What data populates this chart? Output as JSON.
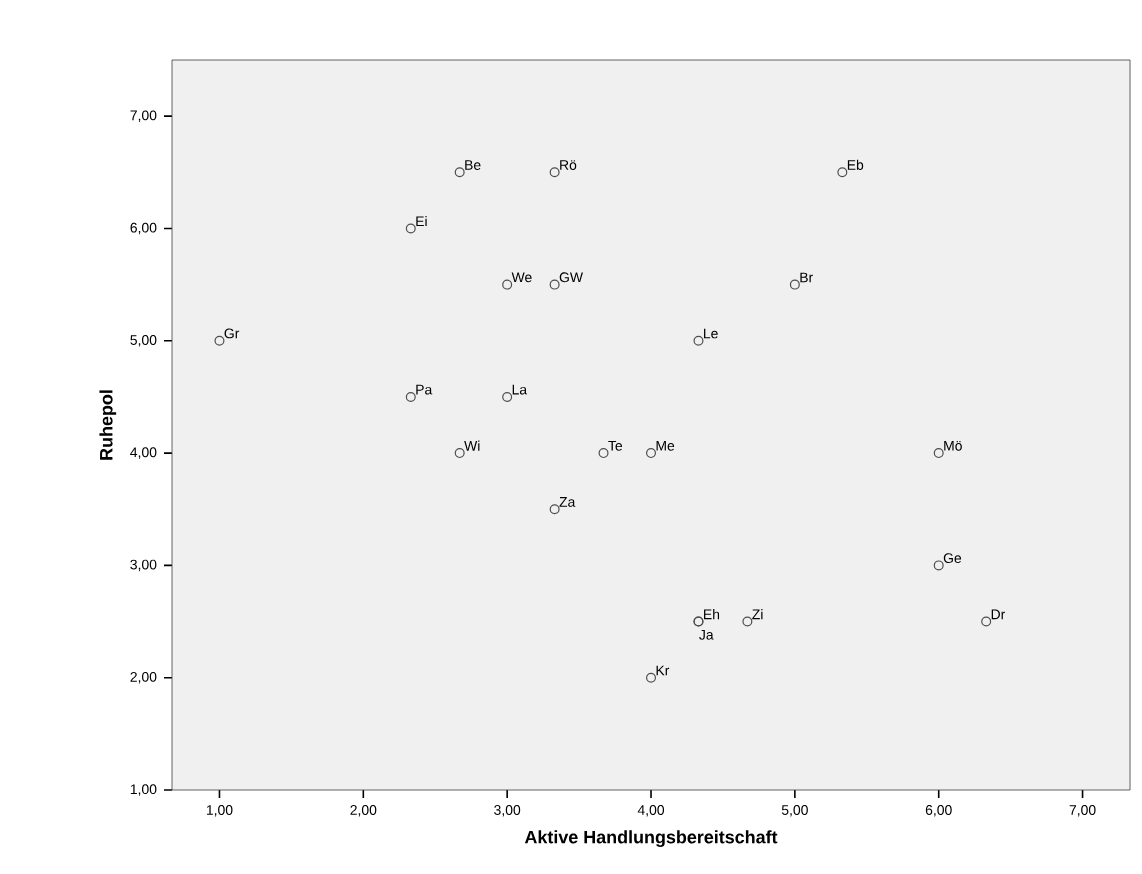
{
  "chart_data": {
    "type": "scatter",
    "xlabel": "Aktive Handlungsbereitschaft",
    "ylabel": "Ruhepol",
    "marker": "circle",
    "color": "#4d4d4d",
    "xlim": [
      0.67,
      7.33
    ],
    "ylim": [
      1,
      7.5
    ],
    "xticks": [
      {
        "value": 1,
        "label": "1,00"
      },
      {
        "value": 2,
        "label": "2,00"
      },
      {
        "value": 3,
        "label": "3,00"
      },
      {
        "value": 4,
        "label": "4,00"
      },
      {
        "value": 5,
        "label": "5,00"
      },
      {
        "value": 6,
        "label": "6,00"
      },
      {
        "value": 7,
        "label": "7,00"
      }
    ],
    "yticks": [
      {
        "value": 1,
        "label": "1,00"
      },
      {
        "value": 2,
        "label": "2,00"
      },
      {
        "value": 3,
        "label": "3,00"
      },
      {
        "value": 4,
        "label": "4,00"
      },
      {
        "value": 5,
        "label": "5,00"
      },
      {
        "value": 6,
        "label": "6,00"
      },
      {
        "value": 7,
        "label": "7,00"
      }
    ],
    "x": [
      1.0,
      2.67,
      3.33,
      5.33,
      2.33,
      3.0,
      3.33,
      5.0,
      4.33,
      2.33,
      3.0,
      2.67,
      3.67,
      4.0,
      6.0,
      3.33,
      6.0,
      4.33,
      4.33,
      4.67,
      6.33,
      4.0
    ],
    "values": [
      5.0,
      6.5,
      6.5,
      6.5,
      6.0,
      5.5,
      5.5,
      5.5,
      5.0,
      4.5,
      4.5,
      4.0,
      4.0,
      4.0,
      4.0,
      3.5,
      3.0,
      2.5,
      2.5,
      2.5,
      2.5,
      2.0
    ],
    "annotations": [
      {
        "text": "Gr",
        "x": 1.0,
        "y": 5.0
      },
      {
        "text": "Be",
        "x": 2.67,
        "y": 6.5
      },
      {
        "text": "Rö",
        "x": 3.33,
        "y": 6.5
      },
      {
        "text": "Eb",
        "x": 5.33,
        "y": 6.5
      },
      {
        "text": "Ei",
        "x": 2.33,
        "y": 6.0
      },
      {
        "text": "We",
        "x": 3.0,
        "y": 5.5
      },
      {
        "text": "GW",
        "x": 3.33,
        "y": 5.5
      },
      {
        "text": "Br",
        "x": 5.0,
        "y": 5.5
      },
      {
        "text": "Le",
        "x": 4.33,
        "y": 5.0
      },
      {
        "text": "Pa",
        "x": 2.33,
        "y": 4.5
      },
      {
        "text": "La",
        "x": 3.0,
        "y": 4.5
      },
      {
        "text": "Wi",
        "x": 2.67,
        "y": 4.0
      },
      {
        "text": "Te",
        "x": 3.67,
        "y": 4.0
      },
      {
        "text": "Me",
        "x": 4.0,
        "y": 4.0
      },
      {
        "text": "Mö",
        "x": 6.0,
        "y": 4.0
      },
      {
        "text": "Za",
        "x": 3.33,
        "y": 3.5
      },
      {
        "text": "Ge",
        "x": 6.0,
        "y": 3.0
      },
      {
        "text": "Eh",
        "x": 4.33,
        "y": 2.5
      },
      {
        "text": "Ja",
        "x": 4.33,
        "y": 2.5
      },
      {
        "text": "Zi",
        "x": 4.67,
        "y": 2.5
      },
      {
        "text": "Dr",
        "x": 6.33,
        "y": 2.5
      },
      {
        "text": "Kr",
        "x": 4.0,
        "y": 2.0
      }
    ]
  }
}
